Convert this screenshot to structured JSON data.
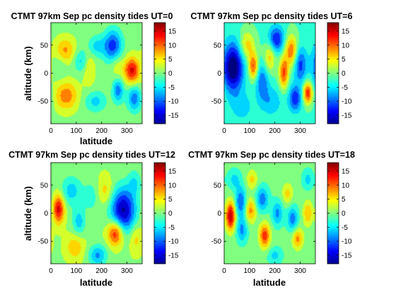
{
  "figure": {
    "colormap": "jet",
    "background": "#ffffff"
  },
  "chart_data": [
    {
      "type": "heatmap",
      "title": "CTMT 97km Sep pc density tides UT=0",
      "xlabel": "latitude",
      "ylabel": "altitude (km)",
      "xlim": [
        0,
        360
      ],
      "ylim": [
        -90,
        90
      ],
      "xticks": [
        0,
        100,
        200,
        300
      ],
      "yticks": [
        50,
        0,
        -50
      ],
      "colorbar": {
        "clim": [
          -18,
          18
        ],
        "ticks": [
          15,
          10,
          5,
          0,
          -5,
          -10,
          -15
        ]
      },
      "background_value": 0.5,
      "features": [
        {
          "x": 55,
          "y": 40,
          "value": 8,
          "sx": 28,
          "sy": 16
        },
        {
          "x": 120,
          "y": 22,
          "value": -6,
          "sx": 22,
          "sy": 14
        },
        {
          "x": 150,
          "y": 10,
          "value": 5,
          "sx": 16,
          "sy": 22
        },
        {
          "x": 180,
          "y": 48,
          "value": -6,
          "sx": 25,
          "sy": 13
        },
        {
          "x": 245,
          "y": 48,
          "value": -13,
          "sx": 25,
          "sy": 20
        },
        {
          "x": 320,
          "y": 5,
          "value": 14,
          "sx": 22,
          "sy": 16
        },
        {
          "x": 60,
          "y": -40,
          "value": 9,
          "sx": 32,
          "sy": 18
        },
        {
          "x": 175,
          "y": -50,
          "value": -6,
          "sx": 30,
          "sy": 13
        },
        {
          "x": 265,
          "y": -30,
          "value": -10,
          "sx": 15,
          "sy": 15
        },
        {
          "x": 330,
          "y": -45,
          "value": -10,
          "sx": 20,
          "sy": 16
        },
        {
          "x": 35,
          "y": 15,
          "value": -3,
          "sx": 20,
          "sy": 18
        },
        {
          "x": 260,
          "y": 15,
          "value": 4,
          "sx": 18,
          "sy": 18
        }
      ]
    },
    {
      "type": "heatmap",
      "title": "CTMT 97km Sep pc density tides UT=6",
      "xlabel": "latitude",
      "ylabel": "altitude (km)",
      "xlim": [
        0,
        360
      ],
      "ylim": [
        -90,
        90
      ],
      "xticks": [
        0,
        100,
        200,
        300
      ],
      "yticks": [
        50,
        0,
        -50
      ],
      "colorbar": {
        "clim": [
          -18,
          18
        ],
        "ticks": [
          15,
          10,
          5,
          0,
          -5,
          -10,
          -15
        ]
      },
      "background_value": -2,
      "features": [
        {
          "x": 35,
          "y": 10,
          "value": -18,
          "sx": 28,
          "sy": 30
        },
        {
          "x": 90,
          "y": 50,
          "value": 8,
          "sx": 22,
          "sy": 18
        },
        {
          "x": 115,
          "y": 12,
          "value": 13,
          "sx": 13,
          "sy": 16
        },
        {
          "x": 150,
          "y": -15,
          "value": -8,
          "sx": 18,
          "sy": 22
        },
        {
          "x": 180,
          "y": 30,
          "value": 8,
          "sx": 16,
          "sy": 20
        },
        {
          "x": 205,
          "y": 60,
          "value": -12,
          "sx": 22,
          "sy": 16
        },
        {
          "x": 235,
          "y": 0,
          "value": 13,
          "sx": 13,
          "sy": 20
        },
        {
          "x": 265,
          "y": 40,
          "value": 12,
          "sx": 18,
          "sy": 20
        },
        {
          "x": 300,
          "y": 15,
          "value": -10,
          "sx": 18,
          "sy": 22
        },
        {
          "x": 330,
          "y": -35,
          "value": 15,
          "sx": 14,
          "sy": 14
        },
        {
          "x": 280,
          "y": -45,
          "value": -11,
          "sx": 18,
          "sy": 16
        },
        {
          "x": 185,
          "y": -50,
          "value": -5,
          "sx": 30,
          "sy": 18
        },
        {
          "x": 70,
          "y": -60,
          "value": -4,
          "sx": 30,
          "sy": 18
        }
      ]
    },
    {
      "type": "heatmap",
      "title": "CTMT 97km Sep pc density tides UT=12",
      "xlabel": "latitude",
      "ylabel": "altitude (km)",
      "xlim": [
        0,
        360
      ],
      "ylim": [
        -90,
        90
      ],
      "xticks": [
        0,
        100,
        200,
        300
      ],
      "yticks": [
        50,
        0,
        -50
      ],
      "colorbar": {
        "clim": [
          -18,
          18
        ],
        "ticks": [
          15,
          10,
          5,
          0,
          -5,
          -10,
          -15
        ]
      },
      "background_value": 1,
      "features": [
        {
          "x": 30,
          "y": 8,
          "value": 14,
          "sx": 16,
          "sy": 18
        },
        {
          "x": 80,
          "y": 40,
          "value": -7,
          "sx": 30,
          "sy": 18
        },
        {
          "x": 110,
          "y": -15,
          "value": -7,
          "sx": 18,
          "sy": 18
        },
        {
          "x": 160,
          "y": 30,
          "value": -4,
          "sx": 22,
          "sy": 20
        },
        {
          "x": 215,
          "y": 40,
          "value": 5,
          "sx": 22,
          "sy": 18
        },
        {
          "x": 285,
          "y": 5,
          "value": -18,
          "sx": 35,
          "sy": 28
        },
        {
          "x": 255,
          "y": -35,
          "value": 14,
          "sx": 22,
          "sy": 16
        },
        {
          "x": 185,
          "y": -75,
          "value": -9,
          "sx": 25,
          "sy": 13
        },
        {
          "x": 95,
          "y": -60,
          "value": 6,
          "sx": 25,
          "sy": 16
        },
        {
          "x": 335,
          "y": -45,
          "value": 5,
          "sx": 18,
          "sy": 18
        },
        {
          "x": 330,
          "y": 55,
          "value": -5,
          "sx": 18,
          "sy": 16
        }
      ]
    },
    {
      "type": "heatmap",
      "title": "CTMT 97km Sep pc density tides UT=18",
      "xlabel": "latitude",
      "ylabel": "altitude (km)",
      "xlim": [
        0,
        360
      ],
      "ylim": [
        -90,
        90
      ],
      "xticks": [
        0,
        100,
        200,
        300
      ],
      "yticks": [
        50,
        0,
        -50
      ],
      "colorbar": {
        "clim": [
          -18,
          18
        ],
        "ticks": [
          15,
          10,
          5,
          0,
          -5,
          -10,
          -15
        ]
      },
      "background_value": -0.5,
      "features": [
        {
          "x": 25,
          "y": -5,
          "value": 17,
          "sx": 13,
          "sy": 18
        },
        {
          "x": 65,
          "y": 20,
          "value": -10,
          "sx": 15,
          "sy": 18
        },
        {
          "x": 70,
          "y": -30,
          "value": -8,
          "sx": 15,
          "sy": 15
        },
        {
          "x": 105,
          "y": 5,
          "value": 9,
          "sx": 15,
          "sy": 15
        },
        {
          "x": 110,
          "y": 60,
          "value": 6,
          "sx": 15,
          "sy": 12
        },
        {
          "x": 150,
          "y": 25,
          "value": -9,
          "sx": 18,
          "sy": 15
        },
        {
          "x": 160,
          "y": -40,
          "value": 13,
          "sx": 15,
          "sy": 15
        },
        {
          "x": 210,
          "y": 0,
          "value": -8,
          "sx": 15,
          "sy": 15
        },
        {
          "x": 250,
          "y": 35,
          "value": 6,
          "sx": 15,
          "sy": 13
        },
        {
          "x": 270,
          "y": -10,
          "value": -9,
          "sx": 15,
          "sy": 15
        },
        {
          "x": 290,
          "y": -45,
          "value": 9,
          "sx": 15,
          "sy": 13
        },
        {
          "x": 330,
          "y": 0,
          "value": 8,
          "sx": 13,
          "sy": 15
        },
        {
          "x": 330,
          "y": 60,
          "value": -5,
          "sx": 15,
          "sy": 12
        },
        {
          "x": 40,
          "y": 60,
          "value": -5,
          "sx": 18,
          "sy": 12
        },
        {
          "x": 200,
          "y": -75,
          "value": -5,
          "sx": 20,
          "sy": 10
        }
      ]
    }
  ]
}
